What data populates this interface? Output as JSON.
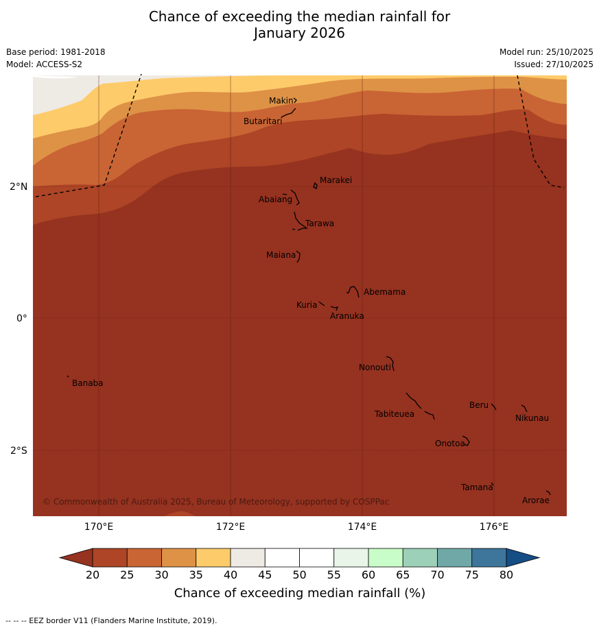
{
  "title_line1": "Chance of exceeding the median rainfall for",
  "title_line2": "January 2026",
  "meta_left": {
    "base_period": "Base period: 1981-2018",
    "model": "Model: ACCESS-S2"
  },
  "meta_right": {
    "model_run": "Model run: 25/10/2025",
    "issued": "Issued: 27/10/2025"
  },
  "map": {
    "lon_ticks": [
      "170°E",
      "172°E",
      "174°E",
      "176°E"
    ],
    "lat_ticks": [
      "2°N",
      "0°",
      "2°S"
    ],
    "copyright": "© Commonwealth of Australia 2025, Bureau of Meteorology, supported by COSPPac",
    "places": [
      "Makin",
      "Butaritari",
      "Marakei",
      "Abaiang",
      "Tarawa",
      "Maiana",
      "Abemama",
      "Kuria",
      "Aranuka",
      "Nonouti",
      "Banaba",
      "Beru",
      "Nikunau",
      "Tabiteuea",
      "Onotoa",
      "Tamana",
      "Arorae"
    ]
  },
  "colorbar": {
    "ticks": [
      "20",
      "25",
      "30",
      "35",
      "40",
      "45",
      "50",
      "55",
      "60",
      "65",
      "70",
      "75",
      "80"
    ],
    "colors": [
      "#963220",
      "#ad4526",
      "#c96434",
      "#de9246",
      "#fecb6a",
      "#eeeae4",
      "#ffffff",
      "#ffffff",
      "#e9f5e9",
      "#c8fcc8",
      "#9dd0b8",
      "#70a8a8",
      "#3d769a",
      "#174d85"
    ],
    "label": "Chance of exceeding median rainfall (%)"
  },
  "footer": "--  --  -- EEZ border V11 (Flanders Marine Institute, 2019)."
}
